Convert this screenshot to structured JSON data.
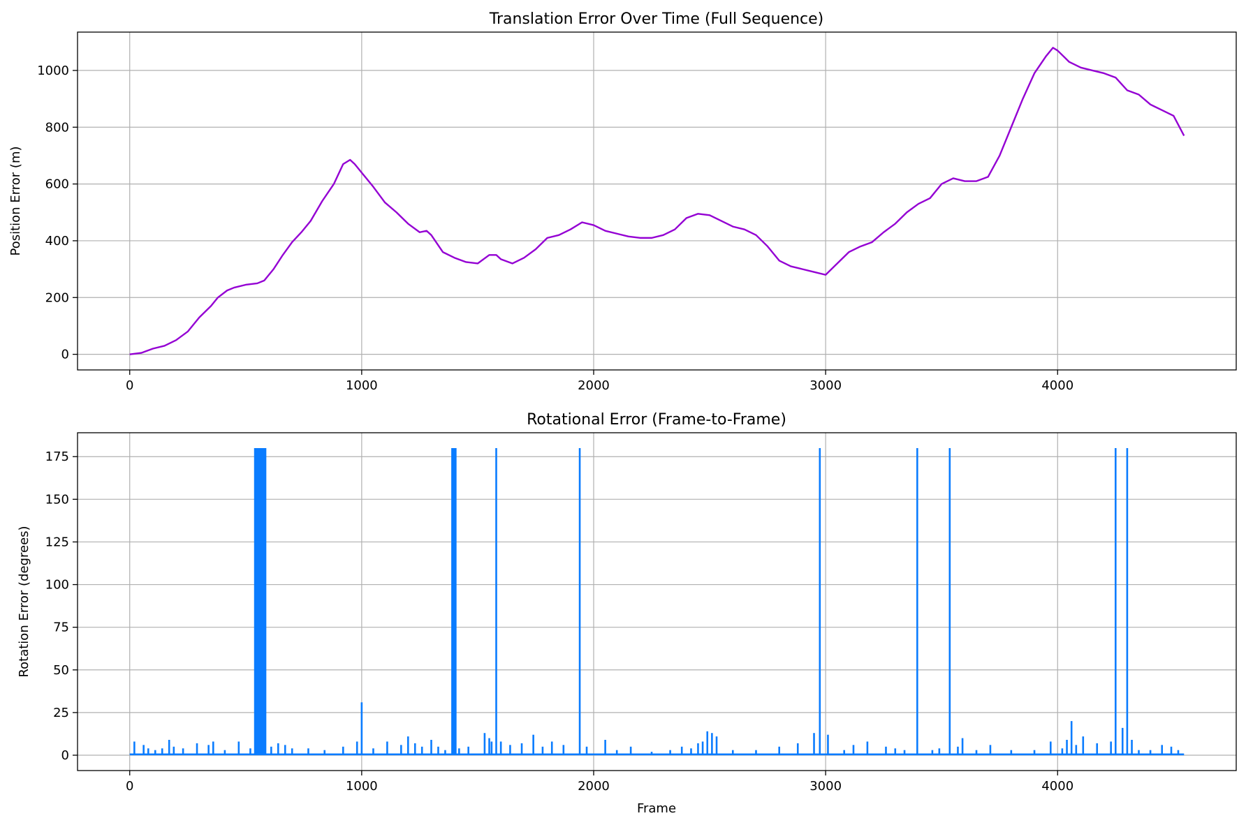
{
  "chart_data": [
    {
      "type": "line",
      "title": "Translation Error Over Time (Full Sequence)",
      "xlabel": "",
      "ylabel": "Position Error (m)",
      "xlim": [
        -225,
        4770
      ],
      "ylim": [
        -55,
        1135
      ],
      "xticks": [
        0,
        1000,
        2000,
        3000,
        4000
      ],
      "yticks": [
        0,
        200,
        400,
        600,
        800,
        1000
      ],
      "grid": true,
      "color": "#9400D3",
      "x": [
        0,
        50,
        100,
        150,
        200,
        250,
        300,
        350,
        380,
        420,
        450,
        500,
        550,
        580,
        620,
        660,
        700,
        740,
        780,
        830,
        880,
        920,
        950,
        970,
        1000,
        1050,
        1100,
        1150,
        1200,
        1250,
        1280,
        1300,
        1350,
        1400,
        1450,
        1500,
        1550,
        1580,
        1600,
        1650,
        1700,
        1750,
        1800,
        1850,
        1900,
        1950,
        2000,
        2050,
        2100,
        2150,
        2200,
        2250,
        2300,
        2350,
        2400,
        2450,
        2500,
        2550,
        2600,
        2650,
        2700,
        2750,
        2800,
        2850,
        2900,
        2950,
        3000,
        3050,
        3100,
        3150,
        3200,
        3250,
        3300,
        3350,
        3400,
        3450,
        3500,
        3550,
        3600,
        3650,
        3700,
        3750,
        3800,
        3850,
        3900,
        3950,
        3980,
        4000,
        4050,
        4100,
        4150,
        4200,
        4250,
        4300,
        4350,
        4400,
        4450,
        4500,
        4545
      ],
      "y": [
        0,
        5,
        20,
        30,
        50,
        80,
        130,
        170,
        200,
        225,
        235,
        245,
        250,
        260,
        300,
        350,
        395,
        430,
        470,
        540,
        600,
        670,
        685,
        670,
        640,
        590,
        535,
        500,
        460,
        430,
        435,
        420,
        360,
        340,
        325,
        320,
        350,
        350,
        335,
        320,
        340,
        370,
        410,
        420,
        440,
        465,
        455,
        435,
        425,
        415,
        410,
        410,
        420,
        440,
        480,
        495,
        490,
        470,
        450,
        440,
        420,
        380,
        330,
        310,
        300,
        290,
        280,
        320,
        360,
        380,
        395,
        430,
        460,
        500,
        530,
        550,
        600,
        620,
        610,
        610,
        625,
        700,
        800,
        900,
        990,
        1050,
        1080,
        1070,
        1030,
        1010,
        1000,
        990,
        975,
        930,
        915,
        880,
        860,
        840,
        770
      ]
    },
    {
      "type": "line",
      "title": "Rotational Error (Frame-to-Frame)",
      "xlabel": "Frame",
      "ylabel": "Rotation Error (degrees)",
      "xlim": [
        -225,
        4770
      ],
      "ylim": [
        -9,
        189
      ],
      "xticks": [
        0,
        1000,
        2000,
        3000,
        4000
      ],
      "yticks": [
        0,
        25,
        50,
        75,
        100,
        125,
        150,
        175
      ],
      "grid": true,
      "color": "#0A7CFF",
      "baseline": 0.5,
      "spikes": [
        [
          20,
          8
        ],
        [
          60,
          6
        ],
        [
          80,
          4
        ],
        [
          110,
          3
        ],
        [
          140,
          4
        ],
        [
          170,
          9
        ],
        [
          190,
          5
        ],
        [
          230,
          4
        ],
        [
          290,
          7
        ],
        [
          340,
          6
        ],
        [
          360,
          8
        ],
        [
          410,
          3
        ],
        [
          470,
          8
        ],
        [
          520,
          4
        ],
        [
          540,
          180
        ],
        [
          545,
          180
        ],
        [
          550,
          180
        ],
        [
          555,
          180
        ],
        [
          560,
          180
        ],
        [
          565,
          180
        ],
        [
          570,
          180
        ],
        [
          575,
          180
        ],
        [
          580,
          180
        ],
        [
          585,
          180
        ],
        [
          610,
          5
        ],
        [
          640,
          7
        ],
        [
          670,
          6
        ],
        [
          700,
          4
        ],
        [
          770,
          4
        ],
        [
          840,
          3
        ],
        [
          920,
          5
        ],
        [
          980,
          8
        ],
        [
          1000,
          31
        ],
        [
          1050,
          4
        ],
        [
          1110,
          8
        ],
        [
          1170,
          6
        ],
        [
          1200,
          11
        ],
        [
          1230,
          7
        ],
        [
          1260,
          5
        ],
        [
          1300,
          9
        ],
        [
          1330,
          5
        ],
        [
          1360,
          3
        ],
        [
          1390,
          180
        ],
        [
          1395,
          180
        ],
        [
          1400,
          180
        ],
        [
          1405,
          180
        ],
        [
          1420,
          4
        ],
        [
          1460,
          5
        ],
        [
          1530,
          13
        ],
        [
          1550,
          10
        ],
        [
          1560,
          8
        ],
        [
          1580,
          180
        ],
        [
          1600,
          8
        ],
        [
          1640,
          6
        ],
        [
          1690,
          7
        ],
        [
          1740,
          12
        ],
        [
          1780,
          5
        ],
        [
          1820,
          8
        ],
        [
          1870,
          6
        ],
        [
          1940,
          180
        ],
        [
          1970,
          5
        ],
        [
          2050,
          9
        ],
        [
          2100,
          3
        ],
        [
          2160,
          5
        ],
        [
          2250,
          2
        ],
        [
          2330,
          3
        ],
        [
          2380,
          5
        ],
        [
          2420,
          4
        ],
        [
          2450,
          7
        ],
        [
          2470,
          8
        ],
        [
          2490,
          14
        ],
        [
          2510,
          13
        ],
        [
          2530,
          11
        ],
        [
          2600,
          3
        ],
        [
          2700,
          3
        ],
        [
          2800,
          5
        ],
        [
          2880,
          7
        ],
        [
          2950,
          13
        ],
        [
          2975,
          180
        ],
        [
          3010,
          12
        ],
        [
          3080,
          3
        ],
        [
          3120,
          6
        ],
        [
          3180,
          8
        ],
        [
          3260,
          5
        ],
        [
          3300,
          4
        ],
        [
          3340,
          3
        ],
        [
          3395,
          180
        ],
        [
          3460,
          3
        ],
        [
          3490,
          4
        ],
        [
          3535,
          180
        ],
        [
          3570,
          5
        ],
        [
          3590,
          10
        ],
        [
          3650,
          3
        ],
        [
          3710,
          6
        ],
        [
          3800,
          3
        ],
        [
          3900,
          3
        ],
        [
          3970,
          8
        ],
        [
          4020,
          4
        ],
        [
          4040,
          9
        ],
        [
          4060,
          20
        ],
        [
          4080,
          6
        ],
        [
          4110,
          11
        ],
        [
          4170,
          7
        ],
        [
          4230,
          8
        ],
        [
          4250,
          180
        ],
        [
          4280,
          16
        ],
        [
          4300,
          180
        ],
        [
          4320,
          9
        ],
        [
          4350,
          3
        ],
        [
          4400,
          3
        ],
        [
          4450,
          6
        ],
        [
          4490,
          5
        ],
        [
          4520,
          3
        ]
      ]
    }
  ]
}
